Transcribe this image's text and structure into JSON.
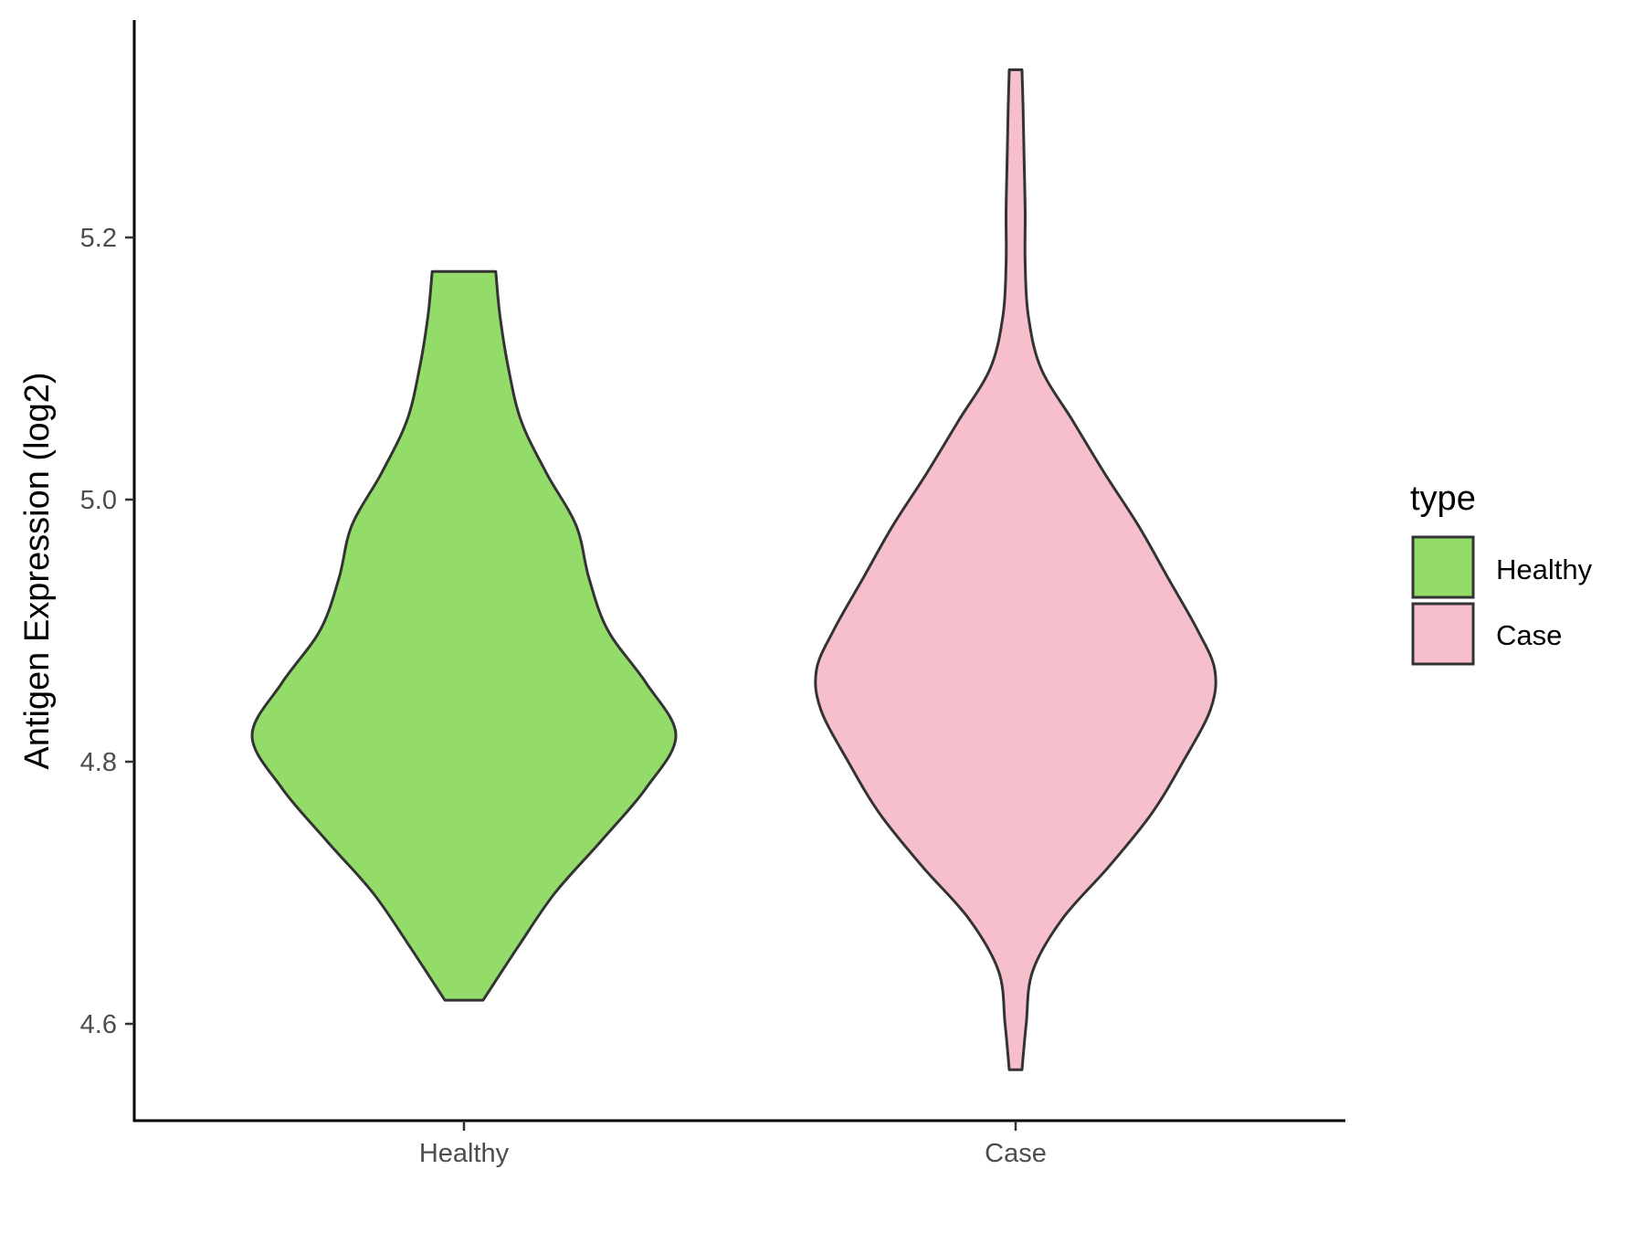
{
  "chart_data": {
    "type": "violin",
    "xlabel": "",
    "ylabel": "Antigen Expression (log2)",
    "categories": [
      "Healthy",
      "Case"
    ],
    "ylim": [
      4.53,
      5.37
    ],
    "yticks": [
      "4.6",
      "4.8",
      "5.0",
      "5.2"
    ],
    "grid": false,
    "legend": {
      "title": "type",
      "position": "right",
      "entries": [
        "Healthy",
        "Case"
      ]
    },
    "series": [
      {
        "name": "Healthy",
        "color": "#93dc6a",
        "min": 4.618,
        "max": 5.174,
        "density": [
          [
            4.618,
            0.09
          ],
          [
            4.66,
            0.26
          ],
          [
            4.7,
            0.43
          ],
          [
            4.74,
            0.65
          ],
          [
            4.78,
            0.86
          ],
          [
            4.82,
            1.0
          ],
          [
            4.86,
            0.86
          ],
          [
            4.9,
            0.68
          ],
          [
            4.94,
            0.59
          ],
          [
            4.98,
            0.53
          ],
          [
            5.02,
            0.39
          ],
          [
            5.06,
            0.27
          ],
          [
            5.1,
            0.21
          ],
          [
            5.14,
            0.17
          ],
          [
            5.174,
            0.15
          ]
        ]
      },
      {
        "name": "Case",
        "color": "#f7bfcb",
        "min": 4.565,
        "max": 5.328,
        "density": [
          [
            4.565,
            0.03
          ],
          [
            4.6,
            0.05
          ],
          [
            4.64,
            0.08
          ],
          [
            4.68,
            0.22
          ],
          [
            4.72,
            0.44
          ],
          [
            4.76,
            0.64
          ],
          [
            4.8,
            0.79
          ],
          [
            4.84,
            0.92
          ],
          [
            4.87,
            0.94
          ],
          [
            4.9,
            0.86
          ],
          [
            4.94,
            0.72
          ],
          [
            4.98,
            0.58
          ],
          [
            5.02,
            0.42
          ],
          [
            5.06,
            0.27
          ],
          [
            5.1,
            0.12
          ],
          [
            5.14,
            0.06
          ],
          [
            5.18,
            0.045
          ],
          [
            5.22,
            0.045
          ],
          [
            5.26,
            0.04
          ],
          [
            5.3,
            0.035
          ],
          [
            5.328,
            0.03
          ]
        ]
      }
    ]
  }
}
